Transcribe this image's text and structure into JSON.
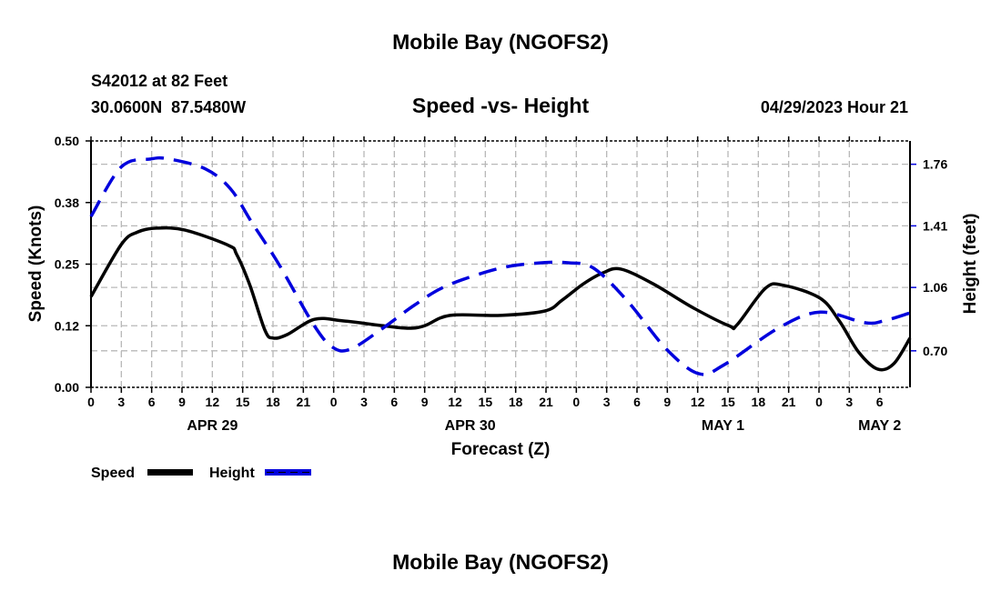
{
  "chart_data": {
    "type": "line",
    "title": "Mobile Bay (NGOFS2)",
    "footer_title": "Mobile Bay (NGOFS2)",
    "station": "S42012 at 82 Feet",
    "location": "30.0600N  87.5480W",
    "subtitle": "Speed -vs- Height",
    "timestamp": "04/29/2023 Hour 21",
    "xlabel": "Forecast (Z)",
    "ylabel": "Speed (Knots)",
    "y2label": "Height (feet)",
    "xlim_hours": [
      0,
      81
    ],
    "x_tick_labels": [
      "0",
      "3",
      "6",
      "9",
      "12",
      "15",
      "18",
      "21",
      "0",
      "3",
      "6",
      "9",
      "12",
      "15",
      "18",
      "21",
      "0",
      "3",
      "6",
      "9",
      "12",
      "15",
      "18",
      "21",
      "0",
      "3",
      "6"
    ],
    "date_labels": [
      {
        "label": "APR 29",
        "hour": 12
      },
      {
        "label": "APR 30",
        "hour": 37.5
      },
      {
        "label": "MAY 1",
        "hour": 62.5
      },
      {
        "label": "MAY 2",
        "hour": 78
      }
    ],
    "ylim": [
      0,
      0.5
    ],
    "y_ticks": [
      {
        "value": 0,
        "label": "0.00"
      },
      {
        "value": 0.125,
        "label": "0.12"
      },
      {
        "value": 0.25,
        "label": "0.25"
      },
      {
        "value": 0.375,
        "label": "0.38"
      },
      {
        "value": 0.5,
        "label": "0.50"
      }
    ],
    "y2lim": [
      0.4925,
      1.8925
    ],
    "y2_ticks": [
      {
        "value": 0.7,
        "label": "0.70"
      },
      {
        "value": 1.06,
        "label": "1.06"
      },
      {
        "value": 1.41,
        "label": "1.41"
      },
      {
        "value": 1.76,
        "label": "1.76"
      }
    ],
    "grid": true,
    "legend_position": "bottom-left",
    "series": [
      {
        "name": "Speed",
        "axis": "left",
        "color": "#000000",
        "dash": false,
        "x": [
          0,
          3,
          4.6,
          6.5,
          9.3,
          13.6,
          14.4,
          15.7,
          17.2,
          18,
          19.4,
          22.1,
          24.9,
          28.9,
          31.4,
          33,
          35.5,
          40.5,
          44.9,
          46.6,
          48.7,
          50.6,
          52.4,
          55.6,
          59.5,
          63.1,
          63.9,
          66.7,
          68.5,
          72.1,
          74,
          75.9,
          77.8,
          79.4,
          81
        ],
        "values": [
          0.184,
          0.29,
          0.315,
          0.323,
          0.319,
          0.288,
          0.27,
          0.208,
          0.116,
          0.1,
          0.107,
          0.138,
          0.135,
          0.125,
          0.12,
          0.125,
          0.146,
          0.146,
          0.155,
          0.177,
          0.21,
          0.232,
          0.24,
          0.21,
          0.162,
          0.125,
          0.127,
          0.201,
          0.207,
          0.181,
          0.135,
          0.072,
          0.037,
          0.048,
          0.1
        ]
      },
      {
        "name": "Height",
        "axis": "right",
        "color": "#0000dd",
        "dash": true,
        "x": [
          0,
          3,
          5.9,
          7.7,
          11.3,
          13.8,
          15.9,
          18.6,
          22,
          23.9,
          25.7,
          28.9,
          32,
          35.2,
          40.5,
          44.6,
          47.2,
          49.7,
          53.1,
          56.9,
          60.1,
          62.6,
          68,
          72.1,
          76.5,
          78.4,
          81
        ],
        "values": [
          1.463,
          1.745,
          1.79,
          1.79,
          1.734,
          1.62,
          1.43,
          1.19,
          0.85,
          0.72,
          0.71,
          0.83,
          0.96,
          1.07,
          1.17,
          1.2,
          1.2,
          1.17,
          0.98,
          0.71,
          0.57,
          0.62,
          0.83,
          0.92,
          0.86,
          0.87,
          0.915
        ]
      }
    ]
  }
}
